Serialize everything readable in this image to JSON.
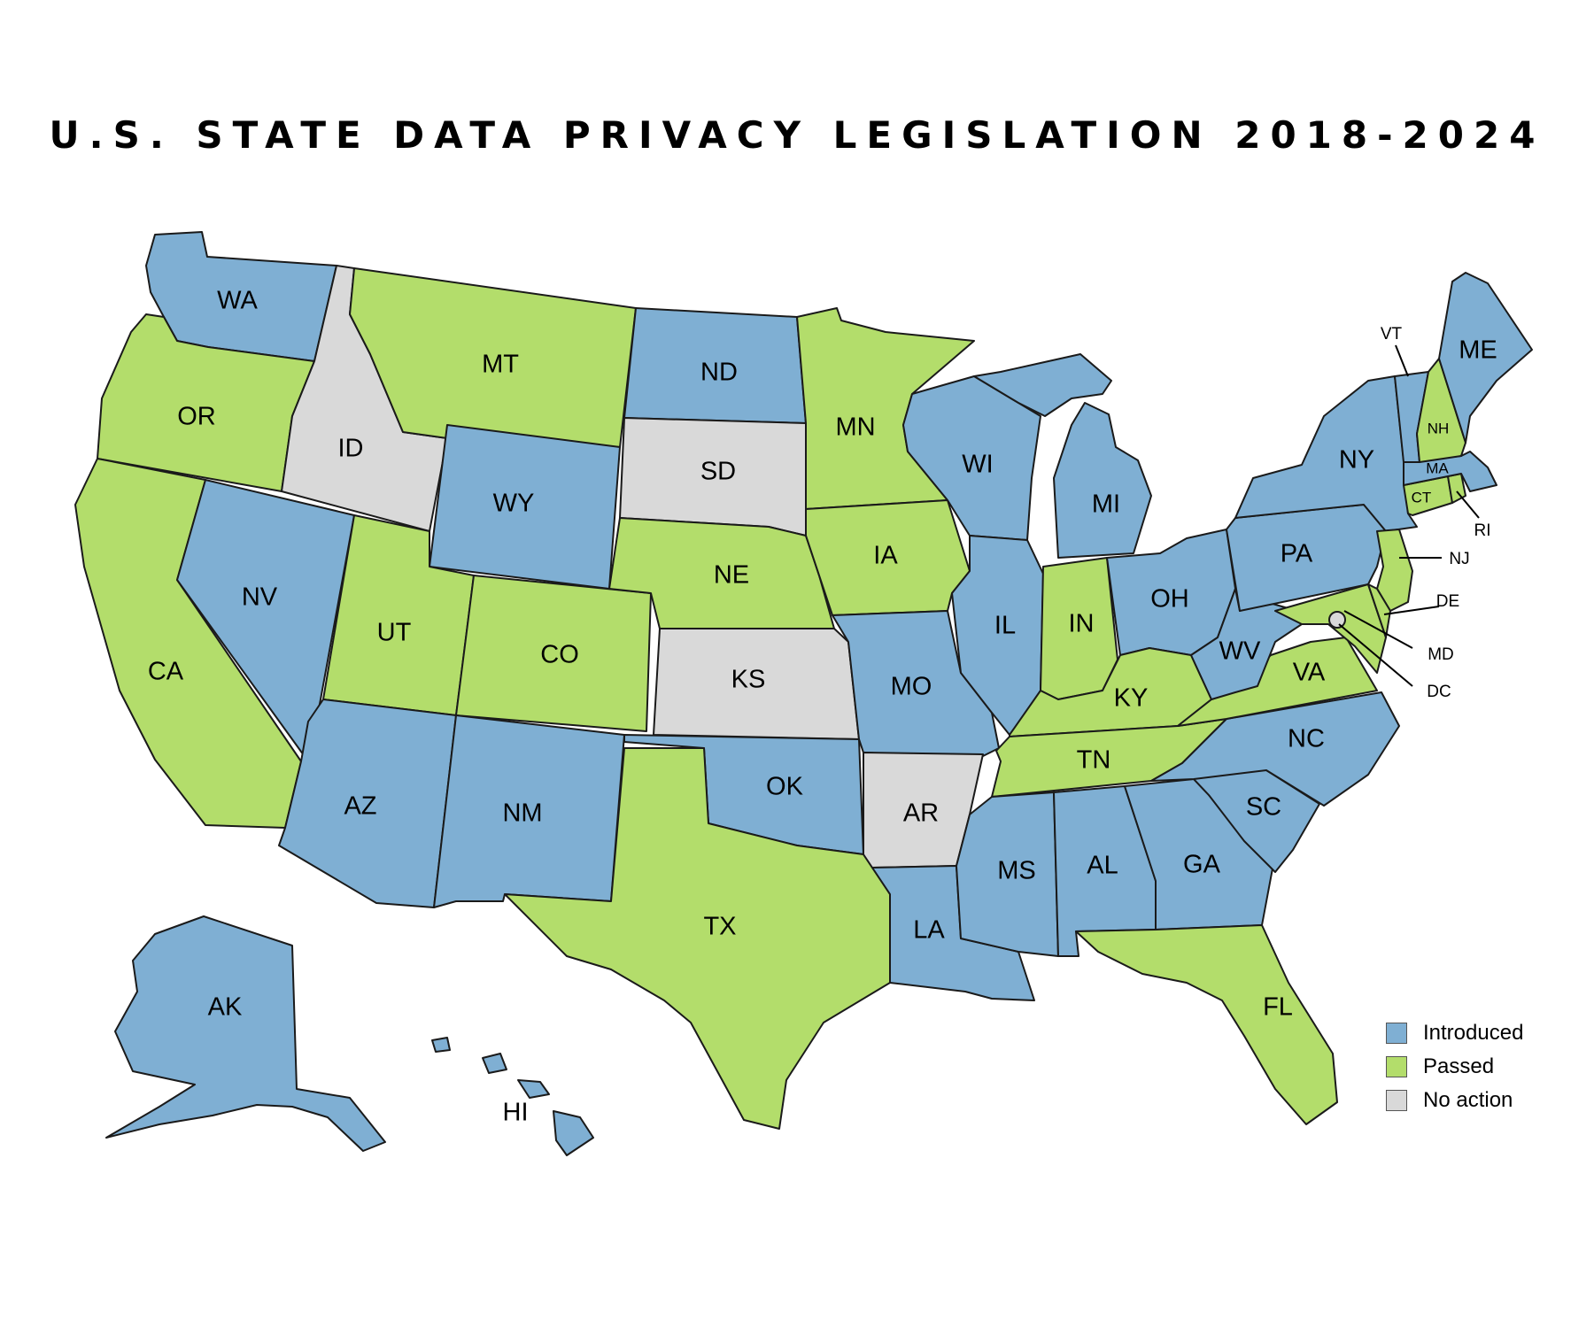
{
  "title": "U.S. STATE DATA PRIVACY LEGISLATION 2018-2024",
  "colors": {
    "introduced": "#7fafd3",
    "passed": "#b3dd6b",
    "no_action": "#d9d9d9"
  },
  "legend": [
    {
      "status": "introduced",
      "label": "Introduced"
    },
    {
      "status": "passed",
      "label": "Passed"
    },
    {
      "status": "no_action",
      "label": "No action"
    }
  ],
  "states": {
    "WA": "introduced",
    "OR": "passed",
    "CA": "passed",
    "NV": "introduced",
    "ID": "no_action",
    "MT": "passed",
    "WY": "introduced",
    "UT": "passed",
    "CO": "passed",
    "AZ": "introduced",
    "NM": "introduced",
    "ND": "introduced",
    "SD": "no_action",
    "NE": "passed",
    "KS": "no_action",
    "OK": "introduced",
    "TX": "passed",
    "MN": "passed",
    "IA": "passed",
    "MO": "introduced",
    "AR": "no_action",
    "LA": "introduced",
    "WI": "introduced",
    "IL": "introduced",
    "MI": "introduced",
    "IN": "passed",
    "OH": "introduced",
    "KY": "passed",
    "TN": "passed",
    "MS": "introduced",
    "AL": "introduced",
    "GA": "introduced",
    "FL": "passed",
    "SC": "introduced",
    "NC": "introduced",
    "VA": "passed",
    "WV": "introduced",
    "PA": "introduced",
    "NY": "introduced",
    "NJ": "passed",
    "DE": "passed",
    "MD": "passed",
    "DC": "no_action",
    "CT": "passed",
    "RI": "passed",
    "MA": "introduced",
    "VT": "introduced",
    "NH": "passed",
    "ME": "introduced",
    "AK": "introduced",
    "HI": "introduced"
  }
}
